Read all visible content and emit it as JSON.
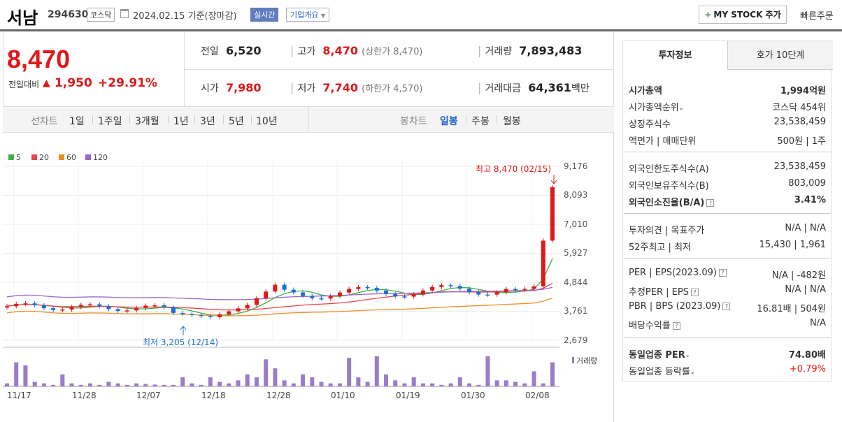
{
  "header": {
    "name": "서남",
    "code": "294630",
    "market": "코스닥",
    "date": "2024.02.15",
    "basis": "기준(장마감)",
    "realtime": "실시간",
    "company_info": "기업개요",
    "mystock": "MY STOCK 추가",
    "quick_order": "빠른주문"
  },
  "price": {
    "current": "8,470",
    "change_label": "전일대비",
    "change": "1,950",
    "change_pct": "+29.91%"
  },
  "stats": {
    "prev_label": "전일",
    "prev": "6,520",
    "high_label": "고가",
    "high": "8,470",
    "upper_limit": "(상한가 8,470)",
    "volume_label": "거래량",
    "volume": "7,893,483",
    "open_label": "시가",
    "open": "7,980",
    "low_label": "저가",
    "low": "7,740",
    "lower_limit": "(하한가 4,570)",
    "amount_label": "거래대금",
    "amount": "64,361",
    "amount_unit": "백만"
  },
  "period_bar": {
    "line_label": "선차트",
    "line_periods": [
      "1일",
      "1주일",
      "3개월",
      "1년",
      "3년",
      "5년",
      "10년"
    ],
    "candle_label": "봉차트",
    "candle_periods": [
      "일봉",
      "주봉",
      "월봉"
    ],
    "selected_candle": "일봉"
  },
  "chart_data": {
    "type": "candlestick",
    "legend": [
      {
        "name": "5",
        "color": "#3cb043"
      },
      {
        "name": "20",
        "color": "#e8464b"
      },
      {
        "name": "60",
        "color": "#f08c28"
      },
      {
        "name": "120",
        "color": "#9966cc"
      }
    ],
    "y_ticks": [
      "9,176",
      "8,093",
      "7,010",
      "5,927",
      "4,844",
      "3,761",
      "2,679"
    ],
    "ylim": [
      2679,
      9176
    ],
    "x_ticks": [
      "11/17",
      "11/28",
      "12/07",
      "12/18",
      "12/28",
      "01/10",
      "01/19",
      "01/30",
      "02/08"
    ],
    "high_annotation": "최고 8,470 (02/15)",
    "low_annotation": "최저 3,205 (12/14)",
    "volume_label": "거래량",
    "colors": {
      "up": "#e01818",
      "down": "#1a6fd6",
      "volume": "#9a7ccb"
    }
  },
  "panel": {
    "tab_active": "투자정보",
    "tab_other": "호가 10단계",
    "g1": [
      {
        "label": "시가총액",
        "value": "1,994억원",
        "bold": true
      },
      {
        "label": "시가총액순위",
        "value": "코스닥 454위",
        "carat": true
      },
      {
        "label": "상장주식수",
        "value": "23,538,459"
      },
      {
        "label": "액면가 | 매매단위",
        "value": "500원 | 1주"
      }
    ],
    "g2": [
      {
        "label": "외국인한도주식수(A)",
        "value": "23,538,459"
      },
      {
        "label": "외국인보유주식수(B)",
        "value": "803,009"
      },
      {
        "label": "외국인소진율(B/A)",
        "value": "3.41%",
        "bold": true,
        "q": true
      }
    ],
    "g3": [
      {
        "label": "투자의견 | 목표주가",
        "value": "N/A | N/A"
      },
      {
        "label": "52주최고 | 최저",
        "value": "15,430 | 1,961"
      }
    ],
    "g4": [
      {
        "label": "PER | EPS(2023.09)",
        "value": "N/A | -482원",
        "q": true
      },
      {
        "label": "추정PER | EPS",
        "value": "N/A | N/A",
        "q": true
      },
      {
        "label": "PBR | BPS (2023.09)",
        "value": "16.81배 | 504원",
        "q": true
      },
      {
        "label": "배당수익률",
        "value": "N/A",
        "q": true
      }
    ],
    "g5": [
      {
        "label": "동일업종 PER",
        "value": "74.80배",
        "bold": true,
        "carat": true
      },
      {
        "label": "동일업종 등락률",
        "value": "+0.79%",
        "red": true,
        "carat": true
      }
    ],
    "q_mark": "?",
    "carat": "▸"
  }
}
